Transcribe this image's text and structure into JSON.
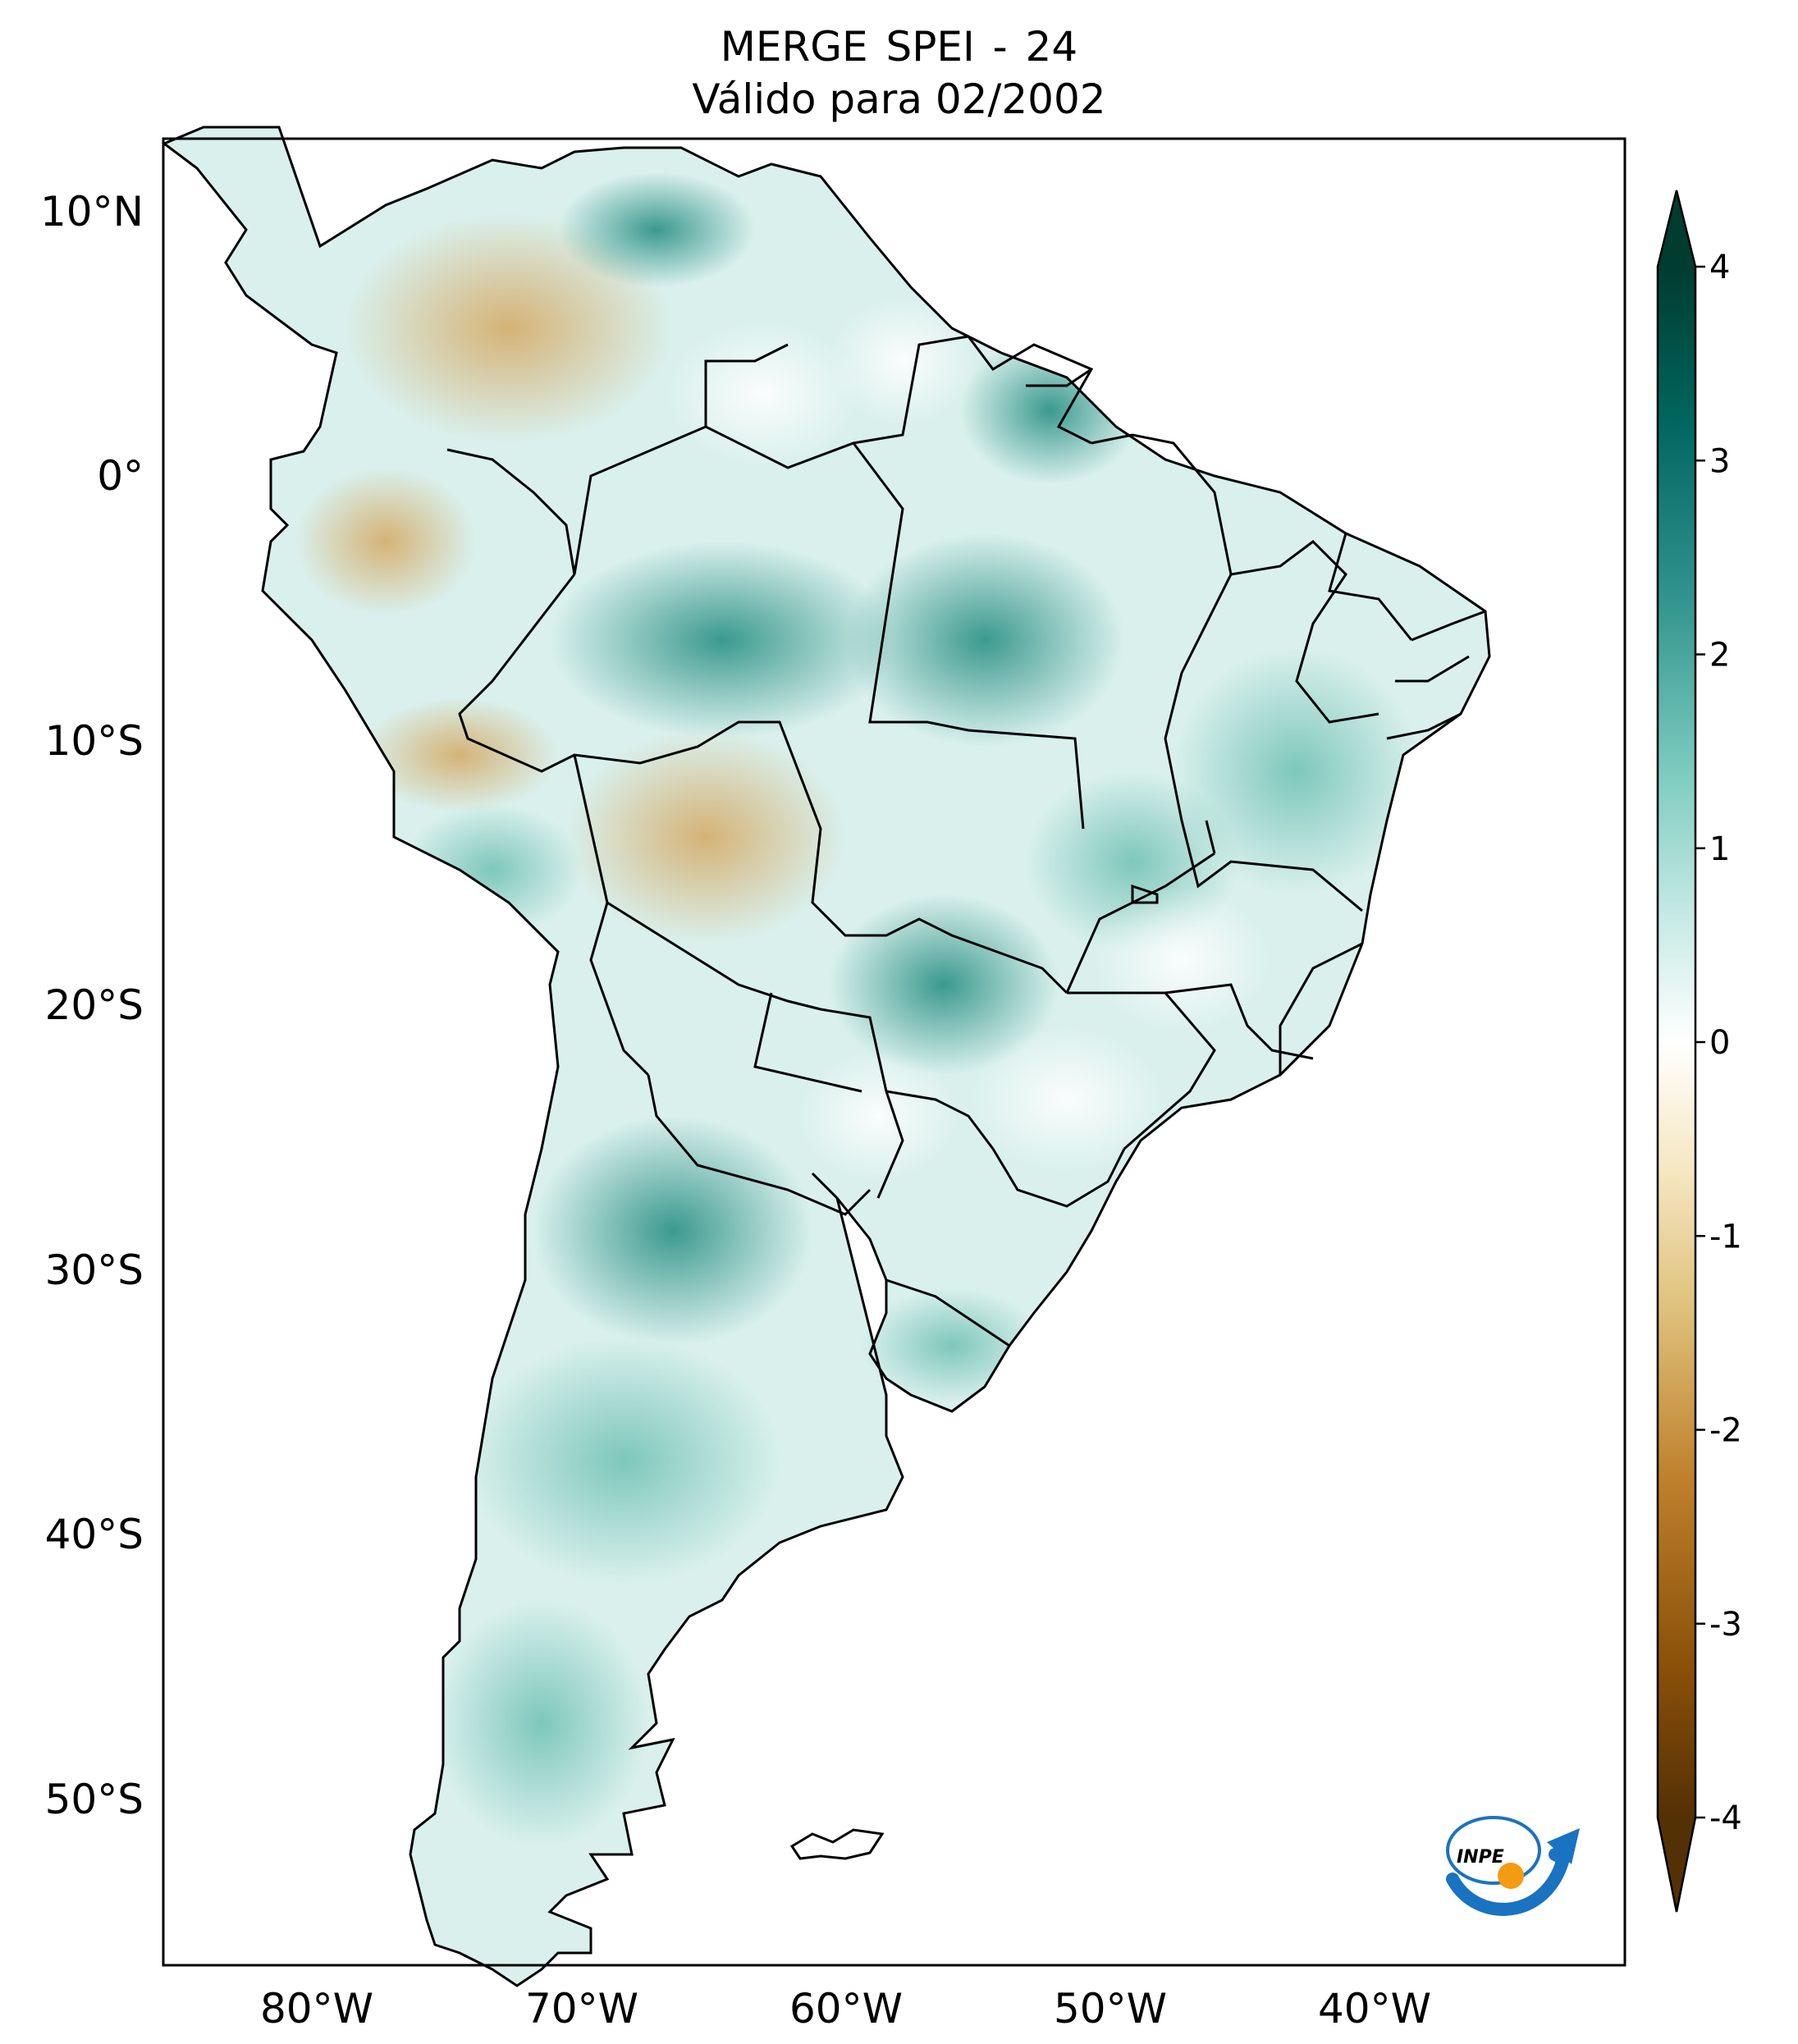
{
  "title": {
    "line1": "MERGE   SPEI - 24",
    "line2": "Válido para 02/2002"
  },
  "map": {
    "lon_ticks": [
      "80°W",
      "70°W",
      "60°W",
      "50°W",
      "40°W"
    ],
    "lat_ticks": [
      "10°N",
      "0°",
      "10°S",
      "20°S",
      "30°S",
      "40°S",
      "50°S"
    ],
    "land_base_color": "#d9f0ec",
    "ocean_color": "#ffffff",
    "border_color": "#000000",
    "extent": {
      "lon": [
        -85,
        -30
      ],
      "lat": [
        -56,
        13
      ]
    }
  },
  "colorbar": {
    "ticks": [
      "4",
      "3",
      "2",
      "1",
      "0",
      "-1",
      "-2",
      "-3",
      "-4"
    ],
    "range": [
      -4,
      4
    ],
    "extend": "both",
    "palette": [
      "#543005",
      "#8c510a",
      "#bf812d",
      "#dfc27d",
      "#f6e8c3",
      "#ffffff",
      "#c7eae5",
      "#80cdc1",
      "#35978f",
      "#01665e",
      "#003c30"
    ]
  },
  "logo": {
    "text": "INPE",
    "colors": {
      "arrow": "#1a73c0",
      "dot": "#f39c12"
    }
  }
}
